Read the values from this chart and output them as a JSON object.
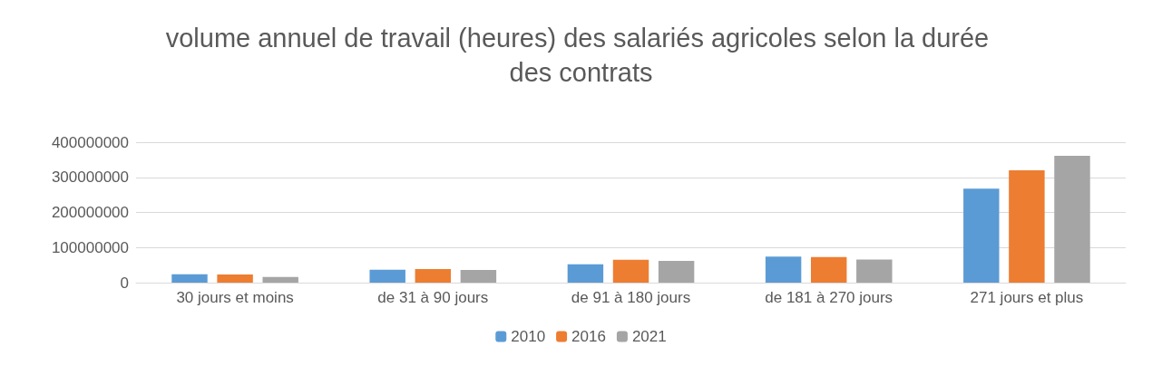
{
  "chart_data": {
    "type": "bar",
    "title": "volume annuel de travail (heures) des salariés agricoles selon la durée des contrats",
    "categories": [
      "30 jours et moins",
      "de 31 à 90 jours",
      "de 91 à 180 jours",
      "de 181 à 270 jours",
      "271 jours et plus"
    ],
    "series": [
      {
        "name": "2010",
        "color": "#5b9bd5",
        "values": [
          24000000,
          37000000,
          52000000,
          74000000,
          268000000
        ]
      },
      {
        "name": "2016",
        "color": "#ed7d31",
        "values": [
          23000000,
          39000000,
          65000000,
          73000000,
          320000000
        ]
      },
      {
        "name": "2021",
        "color": "#a5a5a5",
        "values": [
          16000000,
          36000000,
          62000000,
          66000000,
          361000000
        ]
      }
    ],
    "ylim": [
      0,
      400000000
    ],
    "yticks": [
      0,
      100000000,
      200000000,
      300000000,
      400000000
    ],
    "grid": "y",
    "legend": "bottom"
  }
}
